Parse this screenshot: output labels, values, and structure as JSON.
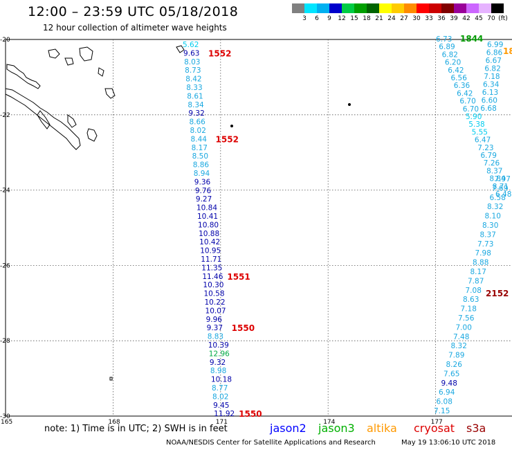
{
  "title": "12:00 – 23:59 UTC 05/18/2018",
  "subtitle": "12 hour collection of altimeter wave heights",
  "colorbar": {
    "colors": [
      "#808080",
      "#00e5ff",
      "#00b0f0",
      "#0000cc",
      "#00cc44",
      "#00a000",
      "#006400",
      "#ffff00",
      "#ffcc00",
      "#ff8c00",
      "#ff0000",
      "#cc0000",
      "#800000",
      "#990099",
      "#cc66ff",
      "#e6b3ff",
      "#000000"
    ],
    "labels": [
      "3",
      "6",
      "9",
      "12",
      "15",
      "18",
      "21",
      "24",
      "27",
      "30",
      "33",
      "36",
      "39",
      "42",
      "45",
      "70"
    ],
    "unit": "(ft)"
  },
  "axes": {
    "lon_ticks": [
      "165",
      "168",
      "171",
      "174",
      "177"
    ],
    "lat_ticks": [
      "-20",
      "-22",
      "-24",
      "-26",
      "-28",
      "-30"
    ]
  },
  "tracks": {
    "track_a": {
      "values": [
        "5.62",
        "9.63",
        "8.03",
        "8.73",
        "8.42",
        "8.33",
        "8.61",
        "8.34",
        "9.32",
        "8.66",
        "8.02",
        "8.44",
        "8.17",
        "8.50",
        "8.86",
        "8.94",
        "9.36",
        "9.76",
        "9.27",
        "10.84",
        "10.41",
        "10.80",
        "10.88",
        "10.42",
        "10.95",
        "11.71",
        "11.35",
        "11.46",
        "10.30",
        "10.58",
        "10.22",
        "10.07",
        "9.96",
        "9.37",
        "8.83",
        "10.39",
        "12.96",
        "9.32",
        "8.98",
        "10.18",
        "8.77",
        "8.02",
        "9.45",
        "11.92"
      ],
      "times": [
        {
          "label": "1552",
          "index": 1
        },
        {
          "label": "1552",
          "index": 11
        },
        {
          "label": "1551",
          "index": 27
        },
        {
          "label": "1550",
          "index": 33
        },
        {
          "label": "1550",
          "index": 43
        }
      ]
    },
    "track_b": {
      "values": [
        "7.15",
        "6.08",
        "6.94",
        "9.48",
        "7.65",
        "8.26",
        "7.89",
        "8.32",
        "7.48",
        "7.00",
        "7.56",
        "7.18",
        "8.63",
        "7.08",
        "7.87",
        "8.17",
        "8.88",
        "7.98",
        "7.73",
        "8.37",
        "8.30",
        "8.10",
        "8.32",
        "6.58",
        "7.69",
        "7.97"
      ],
      "time": "2152"
    },
    "track_c": {
      "values": [
        "6.73",
        "6.89",
        "6.82",
        "6.20",
        "6.42",
        "6.56",
        "6.36",
        "6.42",
        "6.70",
        "6.70",
        "5.90",
        "5.38",
        "5.55",
        "6.47",
        "7.23",
        "6.79",
        "7.26",
        "8.37",
        "8.84",
        "8.71",
        "6.48"
      ],
      "time_green": "1844"
    },
    "track_d": {
      "values": [
        "6.99",
        "6.86",
        "6.67",
        "6.82",
        "7.18",
        "6.34",
        "6.13",
        "6.60",
        "6.68"
      ],
      "time_orange": "18"
    }
  },
  "note": "note:  1) Time is in UTC;  2) SWH is in feet",
  "satellites": [
    {
      "name": "jason2",
      "color": "#0000ff"
    },
    {
      "name": "jason3",
      "color": "#00b000"
    },
    {
      "name": "altika",
      "color": "#ff9900"
    },
    {
      "name": "cryosat",
      "color": "#dd0000"
    },
    {
      "name": "s3a",
      "color": "#990000"
    }
  ],
  "credit": "NOAA/NESDIS Center for Satellite Applications and Research",
  "timestamp": "May 19 13:06:10 UTC 2018"
}
